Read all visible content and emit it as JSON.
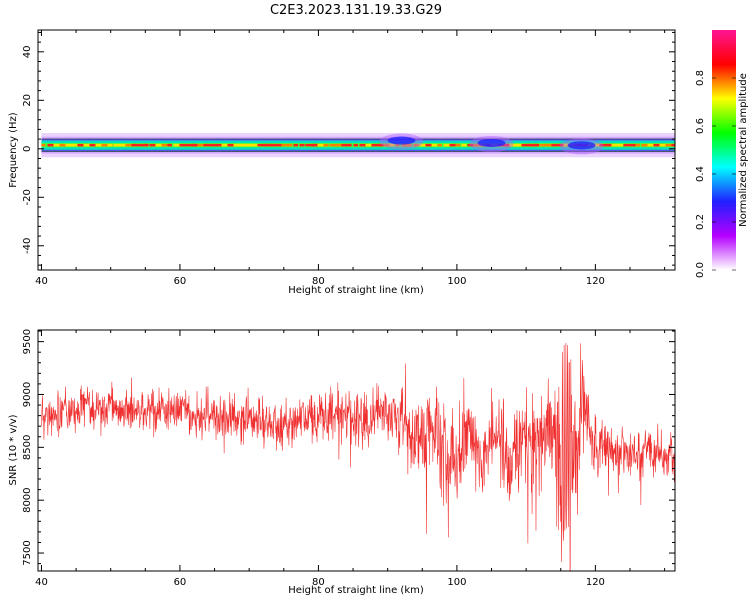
{
  "title": "C2E3.2023.131.19.33.G29",
  "chart_data": [
    {
      "type": "heatmap",
      "xlabel": "Height of straight line (km)",
      "ylabel": "Frequency (Hz)",
      "xlim": [
        39.5,
        131.5
      ],
      "ylim": [
        -50,
        49
      ],
      "xticks": [
        40,
        60,
        80,
        100,
        120
      ],
      "yticks": [
        -40,
        -20,
        0,
        20,
        40
      ],
      "band": {
        "center_hz": 1.5,
        "x_start": 40,
        "x_end": 131.5,
        "core_halfwidth_hz": 1.5,
        "halo_halfwidth_hz": 5
      },
      "blobs": [
        {
          "x": 92,
          "y": 3,
          "intensity": 0.2
        },
        {
          "x": 105,
          "y": 2,
          "intensity": 0.3
        },
        {
          "x": 118,
          "y": 1,
          "intensity": 0.25
        }
      ],
      "colorbar": {
        "label": "Normalized spectral amplitude",
        "ticks": [
          "0.0",
          "0.2",
          "0.4",
          "0.6",
          "0.8"
        ],
        "tick_values": [
          0.0,
          0.2,
          0.4,
          0.6,
          0.8
        ],
        "range": [
          0,
          1
        ],
        "colors": [
          "#ffffff",
          "#b400ff",
          "#2020ff",
          "#00ffff",
          "#00ff00",
          "#ffff00",
          "#ff0000",
          "#ff1493"
        ]
      }
    },
    {
      "type": "line",
      "xlabel": "Height of straight line (km)",
      "ylabel": "SNR (10 * v/v)",
      "xlim": [
        39.5,
        131.5
      ],
      "ylim": [
        7330,
        9610
      ],
      "xticks": [
        40,
        60,
        80,
        100,
        120
      ],
      "yticks": [
        7500,
        8000,
        8500,
        9000,
        9500
      ],
      "color": "#f03030",
      "series": [
        {
          "x": [
            40,
            45,
            50,
            55,
            60,
            65,
            70,
            75,
            80,
            85,
            90,
            92,
            94,
            96,
            98,
            100,
            102,
            104,
            106,
            108,
            110,
            112,
            113,
            114,
            115,
            116,
            117,
            118,
            119,
            120,
            122,
            125,
            128,
            131.5
          ],
          "y": [
            8800,
            8850,
            8880,
            8820,
            8830,
            8790,
            8760,
            8720,
            8820,
            8790,
            8830,
            8700,
            8550,
            8700,
            8500,
            8450,
            8650,
            8400,
            8600,
            8350,
            8600,
            8550,
            8700,
            8800,
            8350,
            8650,
            8450,
            8800,
            8650,
            8450,
            8480,
            8460,
            8450,
            8460
          ],
          "noise_amplitude": [
            160,
            160,
            160,
            170,
            170,
            170,
            170,
            180,
            180,
            190,
            200,
            260,
            320,
            300,
            320,
            340,
            320,
            320,
            300,
            320,
            340,
            350,
            400,
            480,
            650,
            560,
            500,
            400,
            300,
            220,
            180,
            170,
            170,
            170
          ]
        }
      ]
    }
  ]
}
